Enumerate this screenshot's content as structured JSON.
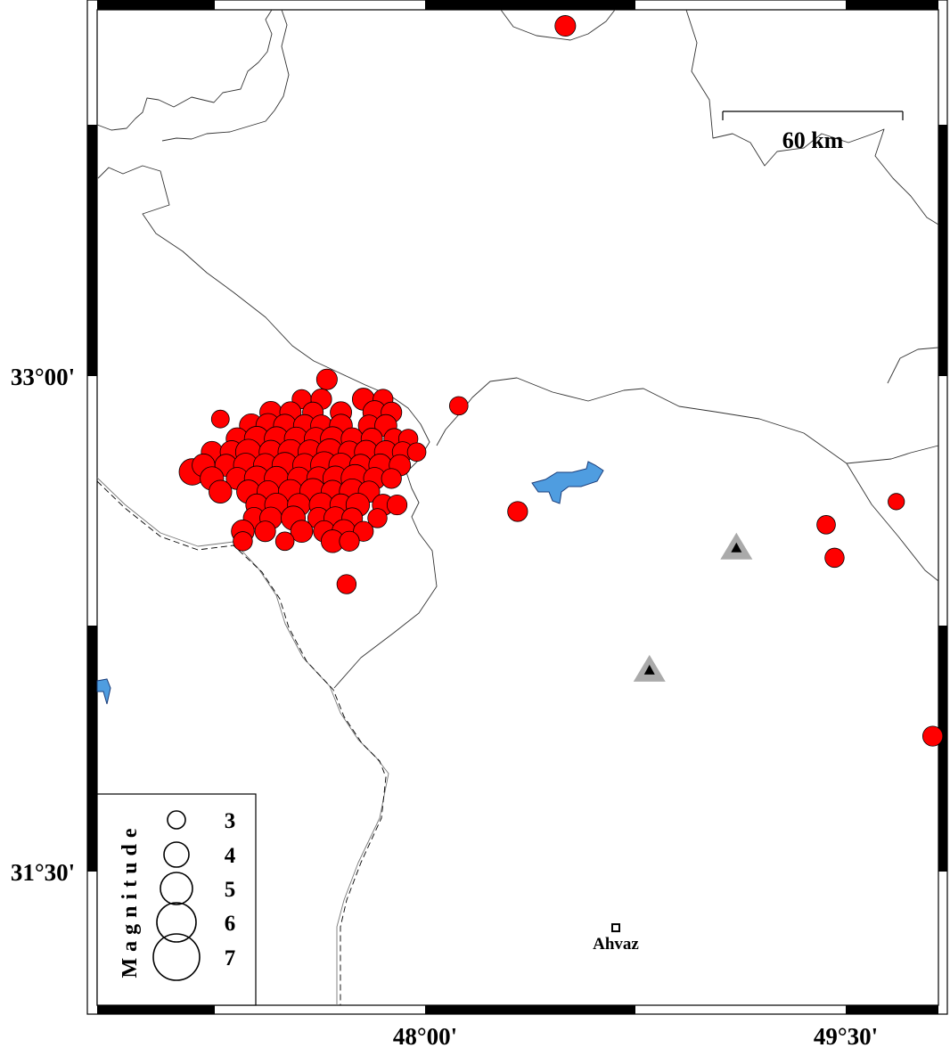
{
  "map_data": {
    "type": "seismicity-map",
    "extent": {
      "lon": [
        46.83,
        49.83
      ],
      "lat": [
        31.1,
        34.11
      ]
    },
    "axis_labels": {
      "left": [
        "33°00'",
        "31°30'"
      ],
      "bottom": [
        "48°00'",
        "49°30'"
      ]
    },
    "scale_bar": {
      "label": "60 km"
    },
    "legend": {
      "title": "Magnitude",
      "magnitudes": [
        "3",
        "4",
        "5",
        "6",
        "7"
      ]
    },
    "colors": {
      "event": "#ff0000",
      "lake": "#4f9de0",
      "station_outer": "#aaaaaa",
      "station_inner": "#000000"
    },
    "city": {
      "name": "Ahvaz",
      "lon": 48.68,
      "lat": 31.33
    },
    "stations": [
      {
        "lon": 49.11,
        "lat": 32.48
      },
      {
        "lon": 48.8,
        "lat": 32.11
      }
    ],
    "events": [
      [
        48.5,
        34.06,
        3.4
      ],
      [
        47.65,
        32.99,
        3.4
      ],
      [
        48.12,
        32.91,
        3.1
      ],
      [
        48.33,
        32.59,
        3.3
      ],
      [
        49.43,
        32.55,
        3.1
      ],
      [
        49.46,
        32.45,
        3.2
      ],
      [
        49.68,
        32.62,
        2.8
      ],
      [
        49.81,
        31.91,
        3.3
      ],
      [
        47.72,
        32.37,
        3.2
      ],
      [
        47.27,
        32.87,
        3.0
      ],
      [
        47.17,
        32.71,
        4.2
      ],
      [
        47.56,
        32.93,
        3.2
      ],
      [
        47.63,
        32.93,
        3.4
      ],
      [
        47.78,
        32.93,
        3.6
      ],
      [
        47.85,
        32.93,
        3.3
      ],
      [
        47.45,
        32.89,
        3.6
      ],
      [
        47.52,
        32.89,
        3.5
      ],
      [
        47.6,
        32.89,
        3.4
      ],
      [
        47.7,
        32.89,
        3.5
      ],
      [
        47.82,
        32.89,
        3.8
      ],
      [
        47.88,
        32.89,
        3.4
      ],
      [
        47.38,
        32.85,
        3.8
      ],
      [
        47.44,
        32.85,
        3.9
      ],
      [
        47.5,
        32.85,
        3.7
      ],
      [
        47.57,
        32.85,
        3.6
      ],
      [
        47.63,
        32.85,
        3.5
      ],
      [
        47.7,
        32.85,
        3.7
      ],
      [
        47.8,
        32.85,
        3.5
      ],
      [
        47.86,
        32.85,
        3.6
      ],
      [
        47.33,
        32.81,
        3.6
      ],
      [
        47.4,
        32.81,
        4.0
      ],
      [
        47.47,
        32.81,
        3.9
      ],
      [
        47.54,
        32.81,
        3.8
      ],
      [
        47.61,
        32.81,
        3.7
      ],
      [
        47.67,
        32.81,
        3.9
      ],
      [
        47.74,
        32.81,
        3.6
      ],
      [
        47.81,
        32.81,
        3.5
      ],
      [
        47.89,
        32.81,
        3.4
      ],
      [
        47.94,
        32.81,
        3.2
      ],
      [
        47.24,
        32.77,
        3.5
      ],
      [
        47.31,
        32.77,
        3.7
      ],
      [
        47.37,
        32.77,
        4.1
      ],
      [
        47.45,
        32.77,
        3.8
      ],
      [
        47.52,
        32.77,
        4.0
      ],
      [
        47.59,
        32.77,
        3.9
      ],
      [
        47.66,
        32.77,
        4.2
      ],
      [
        47.73,
        32.77,
        3.6
      ],
      [
        47.79,
        32.77,
        3.8
      ],
      [
        47.86,
        32.77,
        3.7
      ],
      [
        47.92,
        32.77,
        3.4
      ],
      [
        47.97,
        32.77,
        3.1
      ],
      [
        47.21,
        32.73,
        3.7
      ],
      [
        47.29,
        32.73,
        3.6
      ],
      [
        47.36,
        32.73,
        3.9
      ],
      [
        47.43,
        32.73,
        3.8
      ],
      [
        47.5,
        32.73,
        4.1
      ],
      [
        47.57,
        32.73,
        3.8
      ],
      [
        47.64,
        32.73,
        4.3
      ],
      [
        47.7,
        32.73,
        3.9
      ],
      [
        47.77,
        32.73,
        3.6
      ],
      [
        47.84,
        32.73,
        3.7
      ],
      [
        47.91,
        32.73,
        3.5
      ],
      [
        47.24,
        32.69,
        3.8
      ],
      [
        47.33,
        32.69,
        3.6
      ],
      [
        47.4,
        32.69,
        4.0
      ],
      [
        47.47,
        32.69,
        3.9
      ],
      [
        47.55,
        32.69,
        3.7
      ],
      [
        47.62,
        32.69,
        3.8
      ],
      [
        47.68,
        32.69,
        4.0
      ],
      [
        47.75,
        32.69,
        4.4
      ],
      [
        47.82,
        32.69,
        3.6
      ],
      [
        47.88,
        32.69,
        3.3
      ],
      [
        47.27,
        32.65,
        3.7
      ],
      [
        47.37,
        32.65,
        3.8
      ],
      [
        47.44,
        32.65,
        3.6
      ],
      [
        47.52,
        32.65,
        3.9
      ],
      [
        47.6,
        32.65,
        4.2
      ],
      [
        47.67,
        32.65,
        3.7
      ],
      [
        47.74,
        32.65,
        4.1
      ],
      [
        47.8,
        32.65,
        3.5
      ],
      [
        47.4,
        32.61,
        3.6
      ],
      [
        47.47,
        32.61,
        3.8
      ],
      [
        47.55,
        32.61,
        3.7
      ],
      [
        47.63,
        32.61,
        3.9
      ],
      [
        47.7,
        32.61,
        3.6
      ],
      [
        47.76,
        32.61,
        3.8
      ],
      [
        47.85,
        32.61,
        3.5
      ],
      [
        47.9,
        32.61,
        3.3
      ],
      [
        47.39,
        32.57,
        3.5
      ],
      [
        47.45,
        32.57,
        3.6
      ],
      [
        47.53,
        32.57,
        3.9
      ],
      [
        47.62,
        32.57,
        3.5
      ],
      [
        47.68,
        32.57,
        3.7
      ],
      [
        47.74,
        32.57,
        3.4
      ],
      [
        47.83,
        32.57,
        3.2
      ],
      [
        47.35,
        32.53,
        3.7
      ],
      [
        47.43,
        32.53,
        3.4
      ],
      [
        47.56,
        32.53,
        3.6
      ],
      [
        47.64,
        32.53,
        3.5
      ],
      [
        47.71,
        32.53,
        3.8
      ],
      [
        47.78,
        32.53,
        3.3
      ],
      [
        47.35,
        32.5,
        3.2
      ],
      [
        47.5,
        32.5,
        3.1
      ],
      [
        47.67,
        32.5,
        3.7
      ],
      [
        47.73,
        32.5,
        3.3
      ]
    ]
  }
}
